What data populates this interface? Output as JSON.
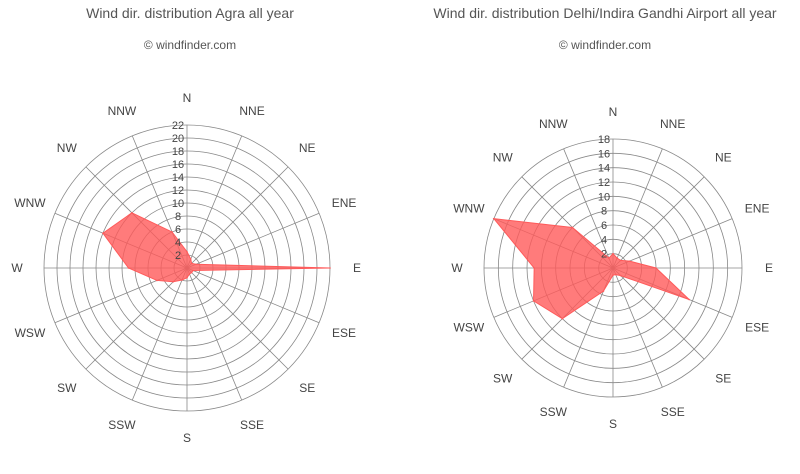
{
  "chart_data": [
    {
      "type": "radar",
      "title": "Wind dir. distribution Agra all year",
      "credit": "© windfinder.com",
      "directions": [
        "N",
        "NNE",
        "NE",
        "ENE",
        "E",
        "ESE",
        "SE",
        "SSE",
        "S",
        "SSW",
        "SW",
        "WSW",
        "W",
        "WNW",
        "NW",
        "NNW"
      ],
      "radial_ticks": [
        "2",
        "4",
        "6",
        "8",
        "10",
        "12",
        "14",
        "16",
        "18",
        "20",
        "22"
      ],
      "rmax": 22,
      "values": [
        2.5,
        1.5,
        1,
        1.5,
        22,
        1,
        1,
        1,
        1.5,
        2,
        3,
        5,
        9,
        14,
        12,
        6
      ],
      "fill_color": "#ff5a5a"
    },
    {
      "type": "radar",
      "title": "Wind dir. distribution Delhi/Indira Gandhi Airport all year",
      "credit": "© windfinder.com",
      "directions": [
        "N",
        "NNE",
        "NE",
        "ENE",
        "E",
        "ESE",
        "SE",
        "SSE",
        "S",
        "SSW",
        "SW",
        "WSW",
        "W",
        "WNW",
        "NW",
        "NNW"
      ],
      "radial_ticks": [
        "2",
        "4",
        "6",
        "8",
        "10",
        "12",
        "14",
        "16",
        "18"
      ],
      "rmax": 18,
      "values": [
        2,
        1.5,
        1.5,
        2.5,
        6,
        11.5,
        1.5,
        1,
        1,
        3.5,
        10,
        12,
        11,
        18,
        8,
        1.5
      ],
      "fill_color": "#ff5a5a"
    }
  ]
}
